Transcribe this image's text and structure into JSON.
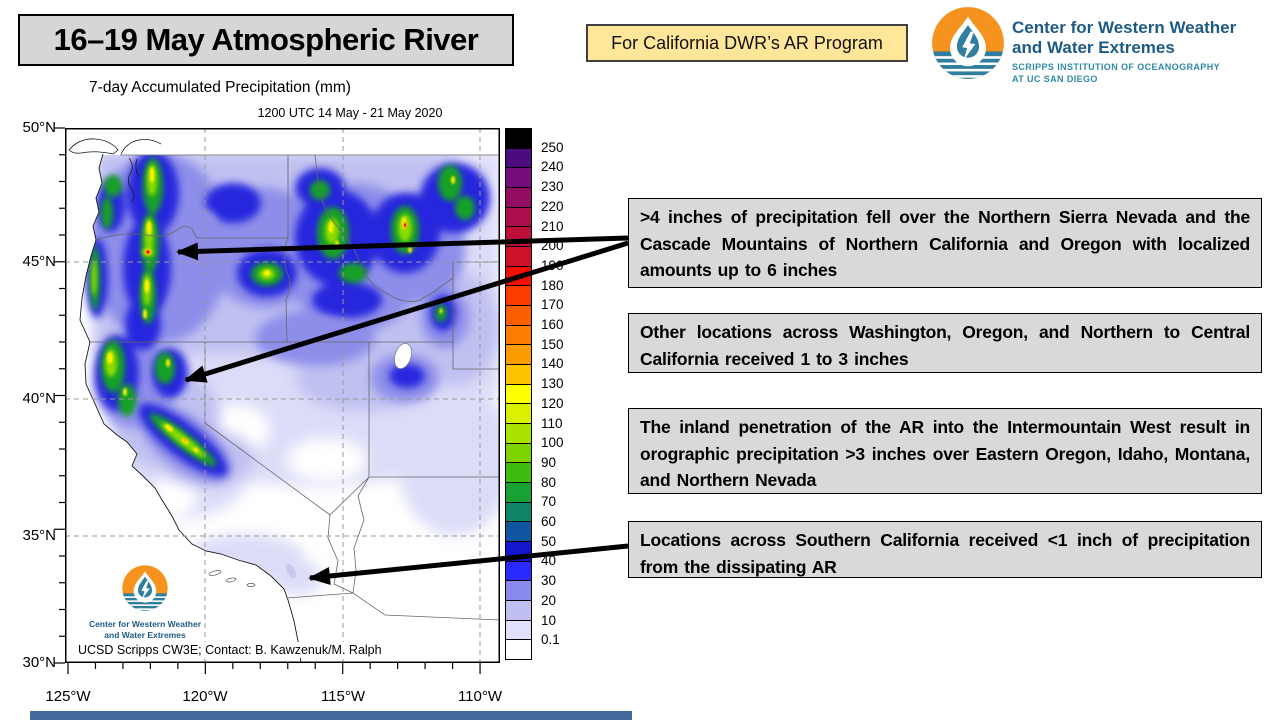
{
  "slide": {
    "title": "16–19 May Atmospheric River",
    "program_label": "For California DWR’s AR Program"
  },
  "logo": {
    "org_line1": "Center for Western Weather",
    "org_line2": "and Water Extremes",
    "scripps_line1": "SCRIPPS INSTITUTION OF OCEANOGRAPHY",
    "scripps_line2": "AT UC SAN DIEGO",
    "colors": {
      "orange": "#f6921e",
      "teal": "#2e7ea0",
      "text_blue": "#1d5b85",
      "scripps_teal": "#2f89a8"
    }
  },
  "map": {
    "title": "7-day Accumulated Precipitation (mm)",
    "subtitle": "1200 UTC 14 May - 21 May 2020",
    "credit": "UCSD Scripps CW3E; Contact: B. Kawzenuk/M. Ralph",
    "y_ticks": [
      "50°N",
      "45°N",
      "40°N",
      "35°N",
      "30°N"
    ],
    "x_ticks": [
      "125°W",
      "120°W",
      "115°W",
      "110°W"
    ]
  },
  "colorbar": {
    "units": "mm",
    "labels_top_to_bottom": [
      "250",
      "240",
      "230",
      "220",
      "210",
      "200",
      "190",
      "180",
      "170",
      "160",
      "150",
      "140",
      "130",
      "120",
      "110",
      "100",
      "90",
      "80",
      "70",
      "60",
      "50",
      "40",
      "30",
      "20",
      "10",
      "0.1"
    ],
    "colors_top_to_bottom": [
      "#000000",
      "#4a0c7e",
      "#740d7c",
      "#930e63",
      "#ab0f4b",
      "#bd1038",
      "#ce1126",
      "#f01000",
      "#fa3c00",
      "#fb5f00",
      "#fc7e00",
      "#fd9c00",
      "#fec200",
      "#ffff00",
      "#d9f000",
      "#abe300",
      "#7ed400",
      "#3dbe0e",
      "#17a233",
      "#0d8566",
      "#0f55a0",
      "#1515d0",
      "#2a2aff",
      "#8a8aec",
      "#bfbff2",
      "#e0e0fa",
      "#ffffff"
    ]
  },
  "annotations": [
    {
      "text": ">4 inches of precipitation fell over the Northern Sierra Nevada and the Cascade Mountains of Northern California and Oregon with localized amounts up to 6 inches"
    },
    {
      "text": "Other locations across Washington, Oregon, and Northern to Central California received 1 to 3 inches"
    },
    {
      "text": "The inland penetration of the AR into the Intermountain West result in orographic precipitation >3 inches over Eastern Oregon, Idaho, Montana, and Northern Nevada"
    },
    {
      "text": "Locations across Southern California received <1 inch of precipitation from the dissipating AR"
    }
  ]
}
